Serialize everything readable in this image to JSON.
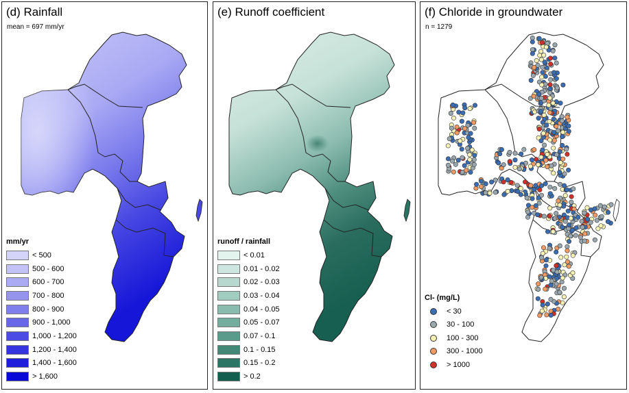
{
  "panels": [
    {
      "title": "(d) Rainfall",
      "subtitle": "mean = 697 mm/yr",
      "legend_title": "mm/yr",
      "legend": [
        {
          "label": "< 500",
          "color": "#d4d4fa"
        },
        {
          "label": "500 - 600",
          "color": "#c2c2f7"
        },
        {
          "label": "600 - 700",
          "color": "#ababf4"
        },
        {
          "label": "700 - 800",
          "color": "#9595f0"
        },
        {
          "label": "800 - 900",
          "color": "#7e7eec"
        },
        {
          "label": "900 - 1,000",
          "color": "#6767e8"
        },
        {
          "label": "1,000 - 1,200",
          "color": "#4c4ce4"
        },
        {
          "label": "1,200 - 1,400",
          "color": "#3535df"
        },
        {
          "label": "1,400 - 1,600",
          "color": "#1f1fdb"
        },
        {
          "label": "> 1,600",
          "color": "#0a0ad6"
        }
      ]
    },
    {
      "title": "(e) Runoff coefficient",
      "legend_title": "runoff / rainfall",
      "legend": [
        {
          "label": "< 0.01",
          "color": "#e3f3ee"
        },
        {
          "label": "0.01 - 0.02",
          "color": "#cde6df"
        },
        {
          "label": "0.02 - 0.03",
          "color": "#b7d8cf"
        },
        {
          "label": "0.03 - 0.04",
          "color": "#a0cbbf"
        },
        {
          "label": "0.04 - 0.05",
          "color": "#89bcae"
        },
        {
          "label": "0.05 - 0.07",
          "color": "#72ad9e"
        },
        {
          "label": "0.07 - 0.1",
          "color": "#5a9b8b"
        },
        {
          "label": "0.1 - 0.15",
          "color": "#438877"
        },
        {
          "label": "0.15 - 0.2",
          "color": "#2c7464"
        },
        {
          "label": "> 0.2",
          "color": "#145e50"
        }
      ]
    },
    {
      "title": "(f) Chloride in groundwater",
      "subtitle": "n = 1279",
      "legend_title": "Cl- (mg/L)",
      "legend": [
        {
          "label": "< 30",
          "color": "#3b6db3"
        },
        {
          "label": "30 - 100",
          "color": "#9aa7ae"
        },
        {
          "label": "100 - 300",
          "color": "#f6f1b5"
        },
        {
          "label": "300 - 1000",
          "color": "#f29a63"
        },
        {
          "label": "> 1000",
          "color": "#d0312a"
        }
      ]
    }
  ]
}
